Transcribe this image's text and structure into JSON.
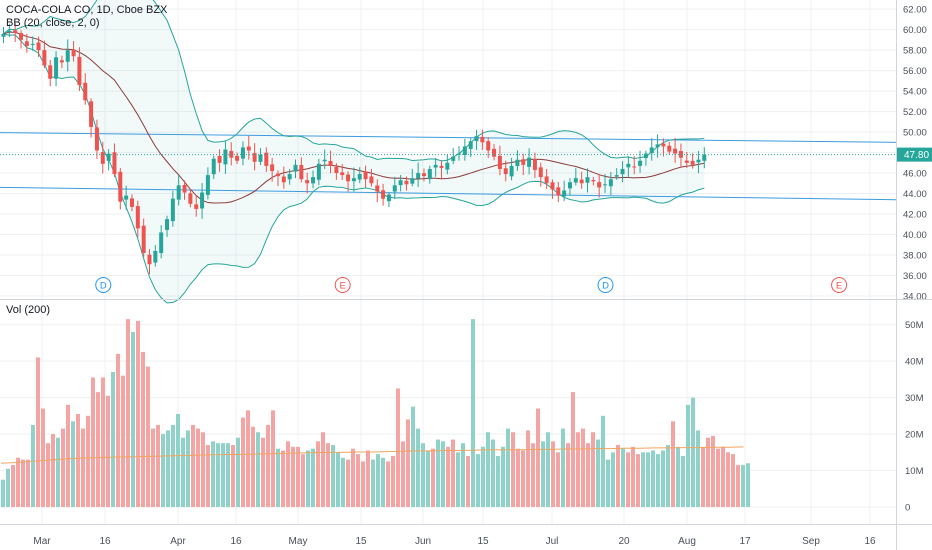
{
  "header": {
    "symbol": "COCA-COLA CO, 1D, Cboe BZX",
    "indicator": "BB (20, close, 2, 0)",
    "volume_label": "Vol (200)"
  },
  "colors": {
    "up": "#26a69a",
    "down": "#ef5350",
    "vol_up": "#8fd2c9",
    "vol_down": "#f4a4a2",
    "bb_band": "#26a69a",
    "bb_basis": "#8b3a3a",
    "trendline": "#3d9be0",
    "vol_ma": "#f2a55e",
    "price_tag": "#26a69a"
  },
  "price_tag": "47.80",
  "chart_data": [
    {
      "type": "candlestick",
      "title": "COCA-COLA CO, 1D, Cboe BZX",
      "x_ticks": [
        "Mar",
        "16",
        "Apr",
        "16",
        "May",
        "15",
        "Jun",
        "15",
        "Jul",
        "20",
        "Aug",
        "17",
        "Sep",
        "16"
      ],
      "y_ticks": [
        "34.00",
        "36.00",
        "38.00",
        "40.00",
        "42.00",
        "44.00",
        "46.00",
        "48.00",
        "50.00",
        "52.00",
        "54.00",
        "56.00",
        "58.00",
        "60.00",
        "62.00"
      ],
      "ylim": [
        34,
        62.5
      ],
      "last_price": 47.8,
      "events": [
        {
          "label": "D",
          "day": 14
        },
        {
          "label": "E",
          "day": 55
        },
        {
          "label": "D",
          "day": 100
        },
        {
          "label": "E",
          "day": 140
        }
      ],
      "closes": [
        59.6,
        59.9,
        59.7,
        59.0,
        58.4,
        58.6,
        58.0,
        56.5,
        55.2,
        57.3,
        56.8,
        58.0,
        57.4,
        54.6,
        53.1,
        50.5,
        48.2,
        46.9,
        47.9,
        45.9,
        43.2,
        43.8,
        42.7,
        40.6,
        38.2,
        37.1,
        38.4,
        40.2,
        41.5,
        43.5,
        44.8,
        44.1,
        43.0,
        42.5,
        44.1,
        45.8,
        47.4,
        47.0,
        48.3,
        47.5,
        47.2,
        48.5,
        48.2,
        47.1,
        47.8,
        46.7,
        46.2,
        45.7,
        45.1,
        45.9,
        46.8,
        45.4,
        45.0,
        45.6,
        46.9,
        47.3,
        46.7,
        46.0,
        45.8,
        45.2,
        45.5,
        45.9,
        45.4,
        45.0,
        44.2,
        43.5,
        43.9,
        44.8,
        45.3,
        44.9,
        45.5,
        46.0,
        45.7,
        46.4,
        46.8,
        46.5,
        47.0,
        47.6,
        47.9,
        48.6,
        49.1,
        49.6,
        49.0,
        48.2,
        47.6,
        46.4,
        45.9,
        46.7,
        47.3,
        46.8,
        47.5,
        46.3,
        45.6,
        45.0,
        44.4,
        43.8,
        44.3,
        45.1,
        45.5,
        45.0,
        45.6,
        45.2,
        44.6,
        44.9,
        45.4,
        45.8,
        46.4,
        46.9,
        46.6,
        47.2,
        47.9,
        48.5,
        48.8,
        48.6,
        48.1,
        47.9,
        47.5,
        47.0,
        46.8,
        47.3,
        47.8
      ]
    },
    {
      "type": "bar",
      "title": "Vol (200)",
      "x_ticks": [
        "Mar",
        "16",
        "Apr",
        "16",
        "May",
        "15",
        "Jun",
        "15",
        "Jul",
        "20",
        "Aug",
        "17",
        "Sep",
        "16"
      ],
      "y_ticks": [
        "0",
        "10M",
        "20M",
        "30M",
        "40M",
        "50M"
      ],
      "ylim": [
        -3,
        54
      ],
      "unit": "M",
      "ma": [
        12,
        12.2,
        12.5,
        12.8,
        13.1,
        13.3,
        13.5,
        13.6,
        13.7,
        13.8,
        13.9,
        14.0,
        14.1,
        14.2,
        14.3,
        14.4,
        14.4,
        14.5,
        14.6,
        14.7,
        14.8,
        14.9,
        15.0,
        15.0,
        15.1,
        15.1,
        15.2,
        15.3,
        15.4,
        15.4,
        15.5,
        15.5,
        15.6,
        15.7,
        15.7,
        15.7,
        15.8,
        15.8,
        15.9,
        15.9,
        16.0,
        16.0,
        16.1,
        16.1,
        16.2,
        16.2,
        16.3,
        16.3,
        16.4,
        16.4,
        16.5
      ],
      "values": [
        7.5,
        10.5,
        11.5,
        13.5,
        13.0,
        13.0,
        22.5,
        41.0,
        27.0,
        17.5,
        20.0,
        19.0,
        21.5,
        28.0,
        23.5,
        25.5,
        21.5,
        25.0,
        35.5,
        31.5,
        35.5,
        30.5,
        37.0,
        42.0,
        36.0,
        51.5,
        48.0,
        51.0,
        42.5,
        38.5,
        21.5,
        22.5,
        20.0,
        21.0,
        22.5,
        25.5,
        19.0,
        21.0,
        22.5,
        21.5,
        20.5,
        17.0,
        18.0,
        17.5,
        17.5,
        17.5,
        17.0,
        19.0,
        24.5,
        26.5,
        22.0,
        20.5,
        19.0,
        22.5,
        26.5,
        16.0,
        15.5,
        18.0,
        16.5,
        16.5,
        14.5,
        15.5,
        16.0,
        18.0,
        20.5,
        17.5,
        17.0,
        15.0,
        13.5,
        13.0,
        16.0,
        14.5,
        12.5,
        15.5,
        13.0,
        14.5,
        13.5,
        12.5,
        14.0,
        32.5,
        18.0,
        24.0,
        27.5,
        21.5,
        17.5,
        15.5,
        16.0,
        18.5,
        18.0,
        16.5,
        18.5,
        15.0,
        17.5,
        14.0,
        51.5,
        14.5,
        16.5,
        20.5,
        18.5,
        14.0,
        16.5,
        21.5,
        20.5,
        16.0,
        15.5,
        21.0,
        17.5,
        27.0,
        18.0,
        20.5,
        18.0,
        15.0,
        21.5,
        17.5,
        31.5,
        20.5,
        21.5,
        17.5,
        20.5,
        18.5,
        25.0,
        13.0,
        15.0,
        17.0,
        16.0,
        15.0,
        16.5,
        14.5,
        15.0,
        15.0,
        15.5,
        14.5,
        15.5,
        17.0,
        23.5,
        16.5,
        14.0,
        28.0,
        30.0,
        21.0,
        16.5,
        19.0,
        19.5,
        16.0,
        16.5,
        15.0,
        14.5,
        11.5,
        11.5,
        12.0
      ]
    }
  ]
}
